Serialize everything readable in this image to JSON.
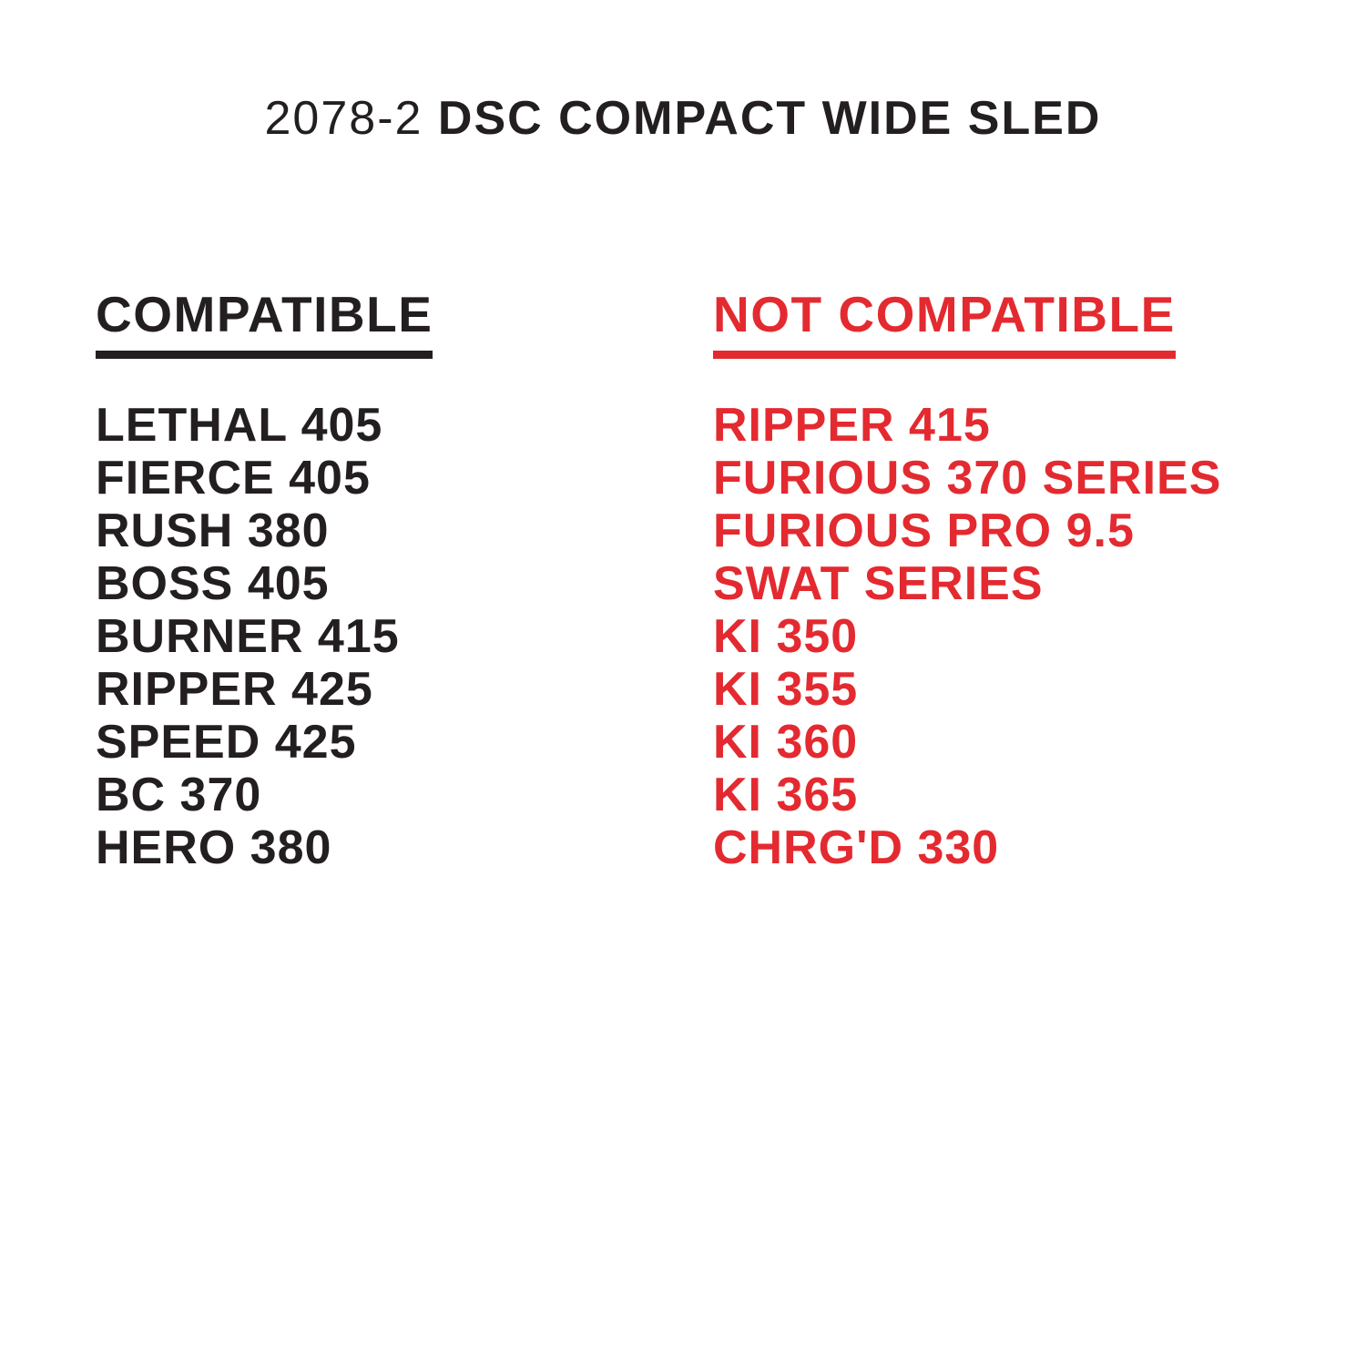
{
  "title": {
    "model": "2078-2",
    "name": "DSC COMPACT WIDE SLED"
  },
  "colors": {
    "black": "#231f20",
    "red": "#e32a30",
    "background": "#ffffff"
  },
  "compatible": {
    "header": "COMPATIBLE",
    "items": [
      "LETHAL 405",
      "FIERCE 405",
      "RUSH 380",
      "BOSS 405",
      "BURNER 415",
      "RIPPER 425",
      "SPEED 425",
      "BC 370",
      "HERO 380"
    ]
  },
  "not_compatible": {
    "header": "NOT COMPATIBLE",
    "items": [
      "RIPPER 415",
      "FURIOUS 370 SERIES",
      "FURIOUS PRO 9.5",
      "SWAT SERIES",
      "KI 350",
      "KI 355",
      "KI 360",
      "KI 365",
      "CHRG'D 330"
    ]
  }
}
